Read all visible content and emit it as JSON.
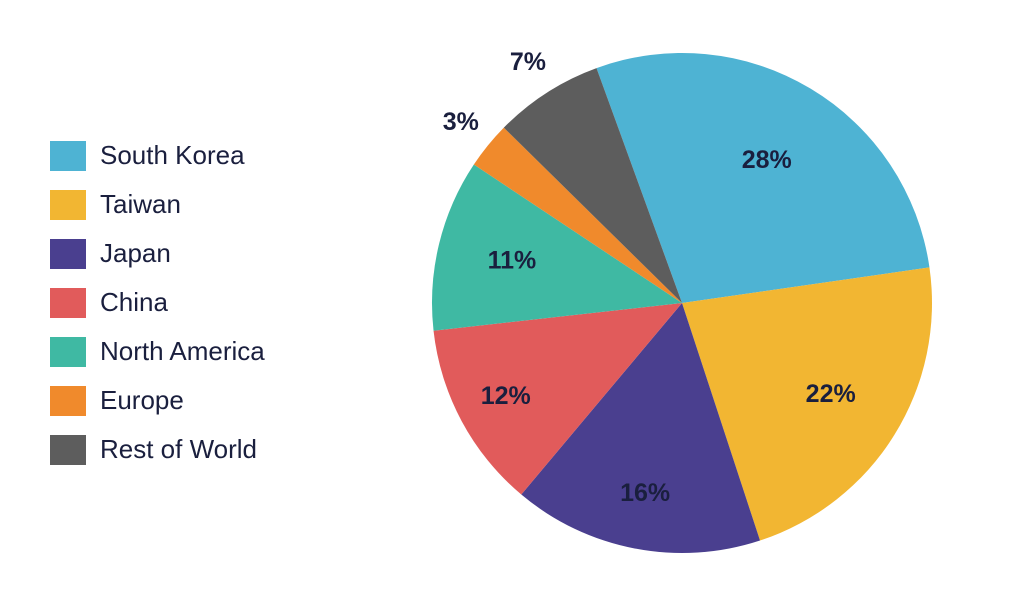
{
  "chart": {
    "type": "pie",
    "background_color": "#ffffff",
    "legend_text_color": "#1a1f3e",
    "label_text_color": "#1a1f3e",
    "legend_fontsize": 26,
    "label_fontsize": 25,
    "pie_radius": 250,
    "start_angle_deg": -110,
    "label_radius_factor": 0.68,
    "slices": [
      {
        "name": "South Korea",
        "value": 28,
        "label": "28%",
        "color": "#4eb3d3"
      },
      {
        "name": "Taiwan",
        "value": 22,
        "label": "22%",
        "color": "#f2b632"
      },
      {
        "name": "Japan",
        "value": 16,
        "label": "16%",
        "color": "#4a3f8f"
      },
      {
        "name": "China",
        "value": 12,
        "label": "12%",
        "color": "#e15b5b"
      },
      {
        "name": "North America",
        "value": 11,
        "label": "11%",
        "color": "#3fb9a3"
      },
      {
        "name": "Europe",
        "value": 3,
        "label": "3%",
        "color": "#f08a2c"
      },
      {
        "name": "Rest of World",
        "value": 7,
        "label": "7%",
        "color": "#5d5d5d"
      }
    ],
    "label_radius_overrides": {
      "Europe": 1.14,
      "Rest of World": 1.14,
      "North America": 0.7,
      "China": 0.8,
      "Japan": 0.78,
      "Taiwan": 0.7,
      "South Korea": 0.66
    }
  }
}
